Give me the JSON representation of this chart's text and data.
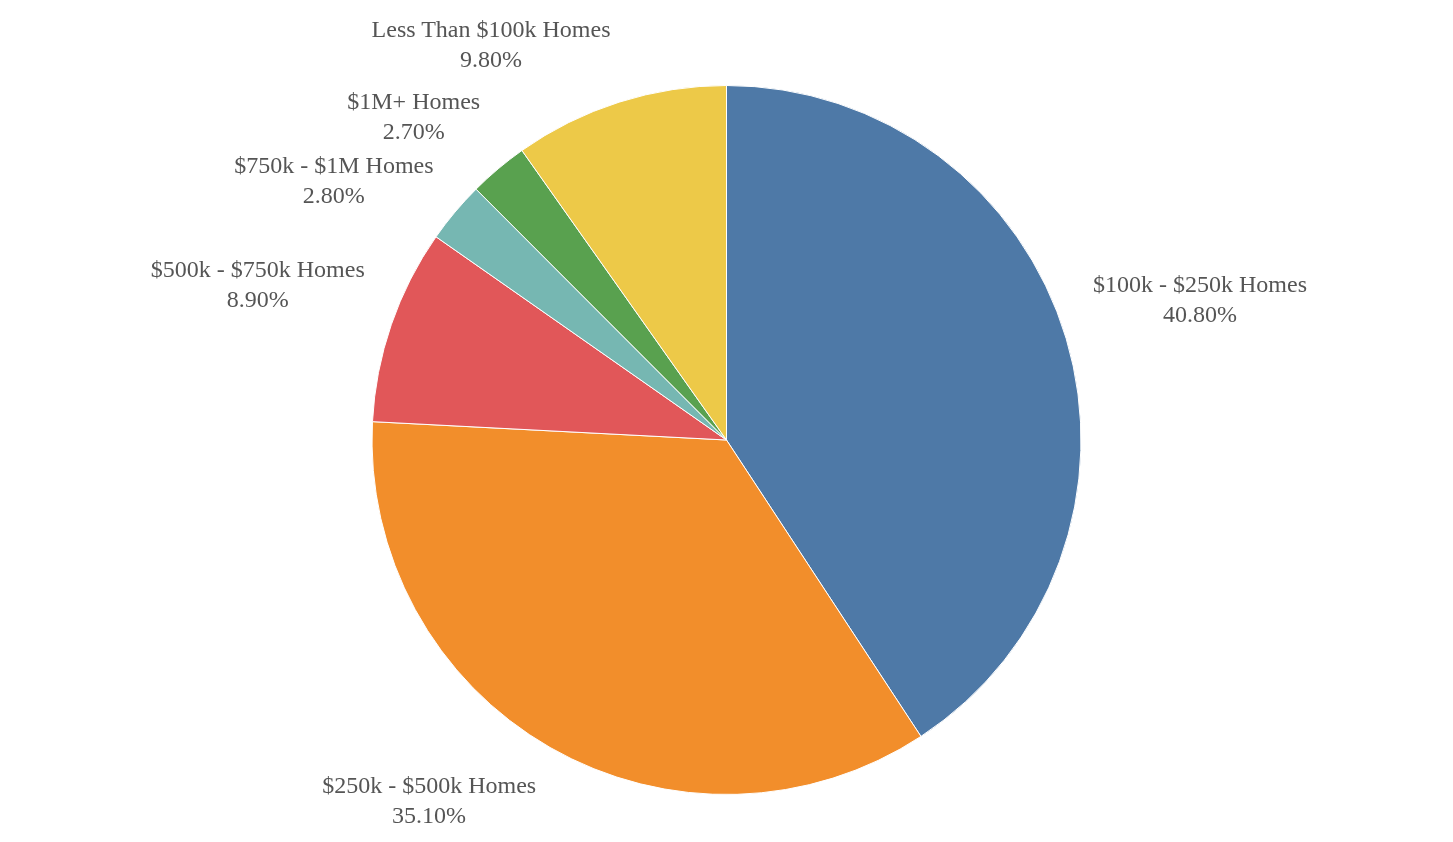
{
  "chart_data": {
    "type": "pie",
    "categories": [
      "$100k - $250k Homes",
      "$250k - $500k Homes",
      "$500k - $750k Homes",
      "$750k - $1M Homes",
      "$1M+ Homes",
      "Less Than $100k Homes"
    ],
    "values": [
      40.8,
      35.1,
      8.9,
      2.8,
      2.7,
      9.8
    ],
    "value_labels": [
      "40.80%",
      "35.10%",
      "8.90%",
      "2.80%",
      "2.70%",
      "9.80%"
    ],
    "colors": [
      "#4e79a7",
      "#f28e2b",
      "#e15759",
      "#76b7b2",
      "#59a14f",
      "#edc948"
    ],
    "legend": false
  }
}
